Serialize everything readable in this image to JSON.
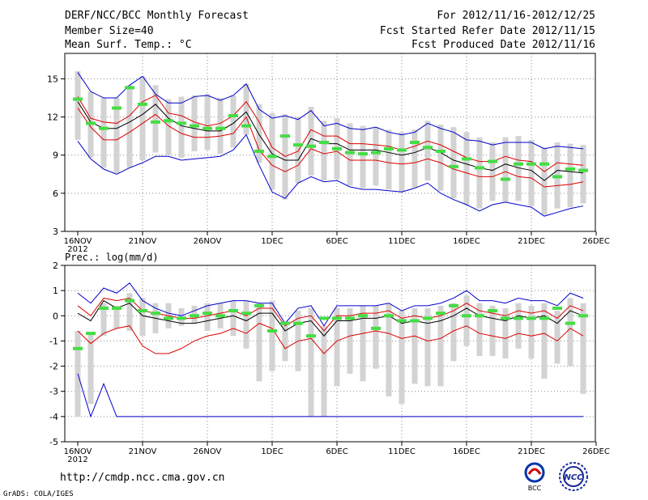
{
  "header": {
    "title": "DERF/NCC/BCC Monthly Forecast",
    "member_size": "Member Size=40",
    "variable": "Mean Surf. Temp.: °C",
    "period": "For 2012/11/16-2012/12/25",
    "fcst_start": "Fcst Started Refer Date 2012/11/15",
    "fcst_produced": "Fcst Produced Date 2012/11/16"
  },
  "footer": {
    "url": "http://cmdp.ncc.cma.gov.cn",
    "grads": "GrADS: COLA/IGES",
    "logo_bcc": "BCC",
    "logo_ncc": "NCC"
  },
  "colors": {
    "box": "#d3d3d3",
    "median": "#44dd44",
    "mean": "#000000",
    "spread": "#dd0000",
    "extreme": "#0000cc",
    "grid": "#888888"
  },
  "chart_data": [
    {
      "type": "ensemble-boxplot",
      "title": "Mean Surf. Temp.: °C",
      "x_ticks": [
        "16NOV\n2012",
        "21NOV",
        "26NOV",
        "1DEC",
        "6DEC",
        "11DEC",
        "16DEC",
        "21DEC",
        "26DEC"
      ],
      "y_ticks": [
        "3",
        "6",
        "9",
        "12",
        "15"
      ],
      "ylim": [
        3,
        17
      ],
      "days": 40,
      "mean": [
        13.2,
        11.6,
        11.1,
        11.1,
        11.6,
        12.2,
        13.0,
        11.9,
        11.3,
        11.1,
        10.9,
        10.9,
        11.5,
        12.4,
        10.6,
        9.1,
        8.6,
        8.6,
        10.3,
        9.9,
        9.9,
        9.4,
        9.4,
        9.4,
        9.2,
        9.0,
        9.2,
        9.6,
        9.2,
        8.6,
        8.3,
        8.0,
        7.8,
        8.3,
        8.0,
        7.8,
        7.0,
        7.8,
        7.7,
        7.6
      ],
      "upper": [
        13.6,
        11.9,
        11.6,
        11.5,
        12.1,
        13.2,
        13.7,
        12.3,
        12.1,
        11.6,
        11.3,
        11.5,
        12.1,
        13.2,
        11.6,
        9.6,
        8.9,
        9.3,
        11.0,
        10.5,
        10.5,
        9.9,
        9.9,
        9.8,
        9.7,
        9.4,
        9.7,
        10.1,
        9.8,
        9.3,
        8.8,
        8.5,
        8.5,
        8.9,
        8.6,
        8.5,
        7.7,
        8.4,
        8.3,
        8.2
      ],
      "lower": [
        12.7,
        11.2,
        10.2,
        10.2,
        10.8,
        11.5,
        12.2,
        11.3,
        10.7,
        10.4,
        10.4,
        10.5,
        10.7,
        12.0,
        9.4,
        8.2,
        7.7,
        8.2,
        9.5,
        9.1,
        9.3,
        8.6,
        8.6,
        8.6,
        8.4,
        8.3,
        8.4,
        8.7,
        8.4,
        7.9,
        7.6,
        7.3,
        7.3,
        7.7,
        7.3,
        7.2,
        6.5,
        6.6,
        6.7,
        6.9
      ],
      "max": [
        15.6,
        14.0,
        13.5,
        13.5,
        14.5,
        15.2,
        14.5,
        13.4,
        13.6,
        13.7,
        13.8,
        13.5,
        13.7,
        14.6,
        13.0,
        12.3,
        12.2,
        12.0,
        12.8,
        11.7,
        11.9,
        11.5,
        11.3,
        11.2,
        11.0,
        10.8,
        11.0,
        11.7,
        11.4,
        11.2,
        10.8,
        10.4,
        10.0,
        10.4,
        10.5,
        10.2,
        9.6,
        10.0,
        9.9,
        9.8
      ],
      "min": [
        10.2,
        8.8,
        8.0,
        7.6,
        8.0,
        8.6,
        9.2,
        9.0,
        8.8,
        9.3,
        9.4,
        9.1,
        9.6,
        10.6,
        8.4,
        6.3,
        5.5,
        6.8,
        7.4,
        7.0,
        7.1,
        6.6,
        6.4,
        6.6,
        6.3,
        6.1,
        6.4,
        7.0,
        6.2,
        5.6,
        5.1,
        4.8,
        5.4,
        5.3,
        5.4,
        5.0,
        4.3,
        4.8,
        4.9,
        5.2
      ],
      "extreme_max": [
        15.5,
        14.0,
        13.5,
        13.5,
        14.5,
        15.2,
        13.8,
        13.1,
        13.1,
        13.6,
        13.7,
        13.3,
        13.7,
        14.6,
        12.6,
        11.9,
        12.1,
        11.8,
        12.5,
        11.3,
        11.5,
        11.1,
        11.0,
        11.2,
        10.8,
        10.6,
        10.8,
        11.5,
        11.1,
        10.8,
        10.2,
        10.1,
        9.8,
        10.0,
        10.0,
        10.0,
        9.5,
        9.7,
        9.6,
        9.5
      ],
      "extreme_min": [
        10.1,
        8.7,
        7.9,
        7.5,
        8.0,
        8.4,
        8.9,
        8.9,
        8.6,
        8.7,
        8.8,
        8.9,
        9.4,
        10.6,
        8.2,
        6.1,
        5.6,
        6.8,
        7.3,
        6.9,
        7.0,
        6.5,
        6.3,
        6.3,
        6.2,
        6.1,
        6.4,
        6.8,
        6.0,
        5.5,
        5.1,
        4.6,
        5.1,
        5.3,
        5.1,
        4.9,
        4.2,
        4.5,
        4.8,
        5.0
      ],
      "median": [
        13.4,
        11.5,
        11.1,
        12.7,
        14.3,
        13.0,
        11.6,
        11.7,
        11.5,
        11.3,
        11.1,
        11.1,
        12.1,
        11.3,
        9.3,
        8.9,
        10.5,
        9.8,
        9.7,
        10.0,
        9.5,
        9.2,
        9.1,
        9.2,
        9.5,
        9.4,
        10.0,
        9.6,
        9.3,
        8.1,
        8.7,
        8.0,
        8.5,
        7.1,
        8.3,
        8.3,
        8.3,
        7.3,
        7.9,
        7.8
      ]
    },
    {
      "type": "ensemble-boxplot",
      "title": "Prec.: log(mm/d)",
      "x_ticks": [
        "16NOV\n2012",
        "21NOV",
        "26NOV",
        "1DEC",
        "6DEC",
        "11DEC",
        "16DEC",
        "21DEC",
        "26DEC"
      ],
      "y_ticks": [
        "-5",
        "-4",
        "-3",
        "-2",
        "-1",
        "0",
        "1",
        "2"
      ],
      "ylim": [
        -5,
        2
      ],
      "days": 40,
      "mean": [
        0.1,
        -0.2,
        0.6,
        0.3,
        0.5,
        0.0,
        -0.1,
        -0.2,
        -0.3,
        -0.3,
        -0.2,
        -0.1,
        0.0,
        -0.2,
        0.1,
        0.1,
        -0.6,
        -0.3,
        -0.2,
        -0.8,
        -0.2,
        -0.2,
        -0.1,
        -0.1,
        0.0,
        -0.3,
        -0.2,
        -0.3,
        -0.2,
        0.0,
        0.3,
        0.0,
        -0.1,
        -0.2,
        0.0,
        -0.1,
        0.0,
        -0.3,
        0.2,
        0.0
      ],
      "upper": [
        0.4,
        0.0,
        0.7,
        0.6,
        0.7,
        0.2,
        0.1,
        0.0,
        -0.1,
        -0.1,
        0.0,
        0.1,
        0.2,
        0.0,
        0.3,
        0.3,
        -0.4,
        -0.1,
        0.0,
        -0.6,
        0.0,
        0.0,
        0.1,
        0.1,
        0.2,
        -0.1,
        0.0,
        -0.1,
        0.0,
        0.2,
        0.5,
        0.2,
        0.1,
        0.0,
        0.2,
        0.1,
        0.2,
        -0.1,
        0.4,
        0.2
      ],
      "lower": [
        -0.6,
        -1.1,
        -0.7,
        -0.5,
        -0.4,
        -1.2,
        -1.5,
        -1.5,
        -1.3,
        -1.0,
        -0.8,
        -0.7,
        -0.5,
        -0.7,
        -0.3,
        -0.5,
        -1.3,
        -1.0,
        -0.9,
        -1.5,
        -1.0,
        -0.8,
        -0.7,
        -0.6,
        -0.7,
        -0.9,
        -0.8,
        -1.0,
        -0.9,
        -0.6,
        -0.4,
        -0.7,
        -0.8,
        -0.9,
        -0.7,
        -0.8,
        -0.7,
        -1.0,
        -0.5,
        -0.8
      ],
      "max": [
        -0.6,
        -0.7,
        0.5,
        0.4,
        0.9,
        0.7,
        0.5,
        0.5,
        0.3,
        0.4,
        0.5,
        0.5,
        0.6,
        0.6,
        0.5,
        0.6,
        -0.3,
        0.2,
        0.3,
        -0.4,
        0.3,
        0.3,
        0.4,
        0.4,
        0.5,
        0.2,
        0.3,
        0.3,
        0.4,
        0.5,
        0.8,
        0.5,
        0.4,
        0.3,
        0.5,
        0.4,
        0.5,
        0.2,
        0.7,
        0.5
      ],
      "min": [
        -4.0,
        -3.5,
        -0.8,
        -0.5,
        -0.6,
        -0.8,
        -0.7,
        -0.5,
        -0.4,
        -0.3,
        -0.6,
        -0.5,
        -0.8,
        -1.3,
        -2.6,
        -2.2,
        -1.8,
        -2.2,
        -4.0,
        -4.0,
        -2.8,
        -2.3,
        -2.6,
        -2.1,
        -3.2,
        -3.5,
        -2.7,
        -2.8,
        -2.8,
        -1.8,
        -1.2,
        -1.6,
        -1.6,
        -1.7,
        -1.3,
        -1.7,
        -2.5,
        -1.9,
        -2.0,
        -3.1
      ],
      "extreme_max": [
        0.9,
        0.5,
        1.1,
        0.9,
        1.3,
        0.6,
        0.3,
        0.1,
        0.0,
        0.2,
        0.4,
        0.5,
        0.6,
        0.6,
        0.5,
        0.5,
        -0.3,
        0.3,
        0.4,
        -0.4,
        0.4,
        0.4,
        0.4,
        0.4,
        0.5,
        0.2,
        0.4,
        0.4,
        0.5,
        0.7,
        1.0,
        0.6,
        0.6,
        0.5,
        0.7,
        0.6,
        0.6,
        0.4,
        0.9,
        0.7
      ],
      "extreme_min": [
        -2.3,
        -4.0,
        -2.7,
        -4.0,
        -4.0,
        -4.0,
        -4.0,
        -4.0,
        -4.0,
        -4.0,
        -4.0,
        -4.0,
        -4.0,
        -4.0,
        -4.0,
        -4.0,
        -4.0,
        -4.0,
        -4.0,
        -4.0,
        -4.0,
        -4.0,
        -4.0,
        -4.0,
        -4.0,
        -4.0,
        -4.0,
        -4.0,
        -4.0,
        -4.0,
        -4.0,
        -4.0,
        -4.0,
        -4.0,
        -4.0,
        -4.0,
        -4.0,
        -4.0,
        -4.0,
        -4.0
      ],
      "median": [
        -1.3,
        -0.7,
        0.3,
        0.3,
        0.6,
        0.2,
        0.1,
        -0.1,
        -0.1,
        0.0,
        0.1,
        0.0,
        0.2,
        0.1,
        0.4,
        -0.6,
        -0.3,
        -0.3,
        -0.8,
        -0.1,
        -0.1,
        -0.1,
        0.0,
        -0.5,
        0.0,
        -0.2,
        -0.2,
        -0.1,
        0.1,
        0.4,
        0.0,
        0.0,
        0.2,
        -0.1,
        -0.1,
        -0.1,
        -0.1,
        0.3,
        -0.3,
        0.0
      ]
    }
  ]
}
